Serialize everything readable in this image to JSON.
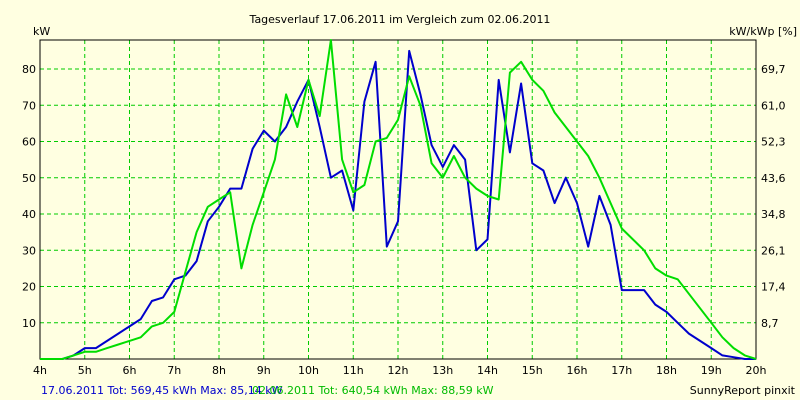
{
  "chart_data": {
    "type": "line",
    "title": "Tagesverlauf 17.06.2011 im Vergleich zum 02.06.2011",
    "ylabel_left": "kW",
    "ylabel_right": "kW/kWp [%]",
    "x_ticks": [
      "4h",
      "5h",
      "6h",
      "7h",
      "8h",
      "9h",
      "10h",
      "11h",
      "12h",
      "13h",
      "14h",
      "15h",
      "16h",
      "17h",
      "18h",
      "19h",
      "20h"
    ],
    "y_ticks_left": [
      10,
      20,
      30,
      40,
      50,
      60,
      70,
      80
    ],
    "y_ticks_right": [
      "8,7",
      "17,4",
      "26,1",
      "34,8",
      "43,6",
      "52,3",
      "61,0",
      "69,7"
    ],
    "xlim": [
      4,
      20
    ],
    "ylim": [
      0,
      88
    ],
    "grid": true,
    "grid_color": "#00cc00",
    "footer_left": "17.06.2011 Tot: 569,45 kWh Max: 85,14 kW",
    "footer_mid": "02.06.2011 Tot: 640,54 kWh Max: 88,59 kW",
    "footer_right": "SunnyReport pinxit",
    "series": [
      {
        "color": "#0000cc",
        "points": [
          [
            4.0,
            0
          ],
          [
            4.25,
            0
          ],
          [
            4.5,
            0
          ],
          [
            4.75,
            1
          ],
          [
            5.0,
            3
          ],
          [
            5.25,
            3
          ],
          [
            5.5,
            5
          ],
          [
            5.75,
            7
          ],
          [
            6.0,
            9
          ],
          [
            6.25,
            11
          ],
          [
            6.5,
            16
          ],
          [
            6.75,
            17
          ],
          [
            7.0,
            22
          ],
          [
            7.25,
            23
          ],
          [
            7.5,
            27
          ],
          [
            7.75,
            38
          ],
          [
            8.0,
            42
          ],
          [
            8.25,
            47
          ],
          [
            8.5,
            47
          ],
          [
            8.75,
            58
          ],
          [
            9.0,
            63
          ],
          [
            9.25,
            60
          ],
          [
            9.5,
            64
          ],
          [
            9.75,
            71
          ],
          [
            10.0,
            77
          ],
          [
            10.25,
            64
          ],
          [
            10.5,
            50
          ],
          [
            10.75,
            52
          ],
          [
            11.0,
            41
          ],
          [
            11.25,
            71
          ],
          [
            11.5,
            82
          ],
          [
            11.75,
            31
          ],
          [
            12.0,
            38
          ],
          [
            12.25,
            85
          ],
          [
            12.5,
            73
          ],
          [
            12.75,
            59
          ],
          [
            13.0,
            53
          ],
          [
            13.25,
            59
          ],
          [
            13.5,
            55
          ],
          [
            13.75,
            30
          ],
          [
            14.0,
            33
          ],
          [
            14.25,
            77
          ],
          [
            14.5,
            57
          ],
          [
            14.75,
            76
          ],
          [
            15.0,
            54
          ],
          [
            15.25,
            52
          ],
          [
            15.5,
            43
          ],
          [
            15.75,
            50
          ],
          [
            16.0,
            43
          ],
          [
            16.25,
            31
          ],
          [
            16.5,
            45
          ],
          [
            16.75,
            37
          ],
          [
            17.0,
            19
          ],
          [
            17.25,
            19
          ],
          [
            17.5,
            19
          ],
          [
            17.75,
            15
          ],
          [
            18.0,
            13
          ],
          [
            18.25,
            10
          ],
          [
            18.5,
            7
          ],
          [
            18.75,
            5
          ],
          [
            19.0,
            3
          ],
          [
            19.25,
            1
          ],
          [
            19.5,
            0.5
          ],
          [
            19.75,
            0
          ],
          [
            20.0,
            0
          ]
        ]
      },
      {
        "color": "#00dd00",
        "points": [
          [
            4.0,
            0
          ],
          [
            4.25,
            0
          ],
          [
            4.5,
            0
          ],
          [
            4.75,
            1
          ],
          [
            5.0,
            2
          ],
          [
            5.25,
            2
          ],
          [
            5.5,
            3
          ],
          [
            5.75,
            4
          ],
          [
            6.0,
            5
          ],
          [
            6.25,
            6
          ],
          [
            6.5,
            9
          ],
          [
            6.75,
            10
          ],
          [
            7.0,
            13
          ],
          [
            7.25,
            24
          ],
          [
            7.5,
            35
          ],
          [
            7.75,
            42
          ],
          [
            8.0,
            44
          ],
          [
            8.25,
            46
          ],
          [
            8.5,
            25
          ],
          [
            8.75,
            37
          ],
          [
            9.0,
            46
          ],
          [
            9.25,
            55
          ],
          [
            9.5,
            73
          ],
          [
            9.75,
            64
          ],
          [
            10.0,
            77
          ],
          [
            10.25,
            67
          ],
          [
            10.5,
            88
          ],
          [
            10.75,
            55
          ],
          [
            11.0,
            46
          ],
          [
            11.25,
            48
          ],
          [
            11.5,
            60
          ],
          [
            11.75,
            61
          ],
          [
            12.0,
            66
          ],
          [
            12.25,
            78
          ],
          [
            12.5,
            70
          ],
          [
            12.75,
            54
          ],
          [
            13.0,
            50
          ],
          [
            13.25,
            56
          ],
          [
            13.5,
            50
          ],
          [
            13.75,
            47
          ],
          [
            14.0,
            45
          ],
          [
            14.25,
            44
          ],
          [
            14.5,
            79
          ],
          [
            14.75,
            82
          ],
          [
            15.0,
            77
          ],
          [
            15.25,
            74
          ],
          [
            15.5,
            68
          ],
          [
            15.75,
            64
          ],
          [
            16.0,
            60
          ],
          [
            16.25,
            56
          ],
          [
            16.5,
            50
          ],
          [
            16.75,
            43
          ],
          [
            17.0,
            36
          ],
          [
            17.25,
            33
          ],
          [
            17.5,
            30
          ],
          [
            17.75,
            25
          ],
          [
            18.0,
            23
          ],
          [
            18.25,
            22
          ],
          [
            18.5,
            18
          ],
          [
            18.75,
            14
          ],
          [
            19.0,
            10
          ],
          [
            19.25,
            6
          ],
          [
            19.5,
            3
          ],
          [
            19.75,
            1
          ],
          [
            20.0,
            0
          ]
        ]
      }
    ]
  }
}
